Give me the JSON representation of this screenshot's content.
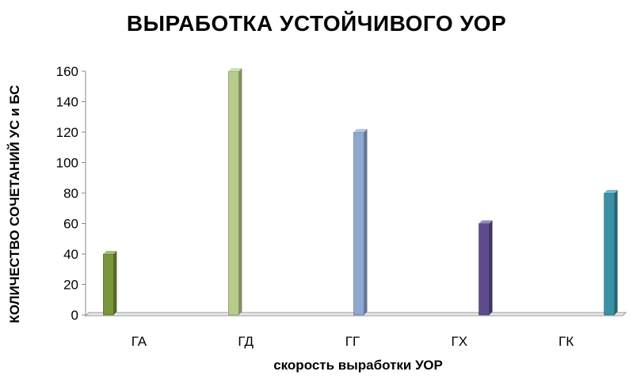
{
  "chart_data": {
    "type": "bar",
    "title": "ВЫРАБОТКА УСТОЙЧИВОГО УОР",
    "xlabel": "скорость выработки УОР",
    "ylabel": "КОЛИЧЕСТВО СОЧЕТАНИЙ УС и БС",
    "categories": [
      "ГА",
      "ГД",
      "ГГ",
      "ГХ",
      "ГК"
    ],
    "series": [
      {
        "values": [
          40,
          0,
          0,
          0,
          0
        ],
        "color": "#77953a"
      },
      {
        "values": [
          0,
          160,
          0,
          0,
          0
        ],
        "color": "#b7cc8c"
      },
      {
        "values": [
          0,
          0,
          120,
          0,
          0
        ],
        "color": "#8ea8d2"
      },
      {
        "values": [
          0,
          0,
          0,
          60,
          0
        ],
        "color": "#5e4b8b"
      },
      {
        "values": [
          0,
          0,
          0,
          0,
          80
        ],
        "color": "#3a91a6"
      }
    ],
    "ylim": [
      0,
      160
    ],
    "yticks": [
      0,
      20,
      40,
      60,
      80,
      100,
      120,
      140,
      160
    ],
    "grid": false,
    "legend": "none"
  }
}
